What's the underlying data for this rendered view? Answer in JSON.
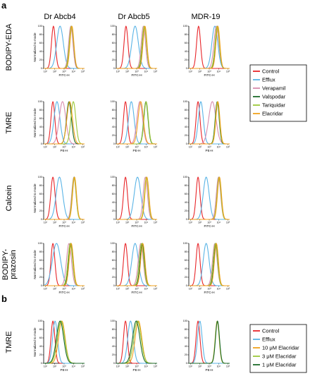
{
  "figure": {
    "panel_a": "a",
    "panel_b": "b",
    "columns": [
      "Dr Abcb4",
      "Dr Abcb5",
      "MDR-19"
    ]
  },
  "colors": {
    "Control": "#e8262a",
    "Efflux": "#5ab4e6",
    "Verapamil": "#d98cae",
    "Valspodar": "#1d6b2a",
    "Tariquidar": "#9cc83a",
    "Elacridar": "#f0a21e",
    "10 μM Elacridar": "#f0a21e",
    "3 μM Elacridar": "#9cc83a",
    "1 μM Elacridar": "#1d6b2a"
  },
  "legend_a": [
    "Control",
    "Efflux",
    "Verapamil",
    "Valspodar",
    "Tariquidar",
    "Elacridar"
  ],
  "legend_b": [
    "Control",
    "Efflux",
    "10 μM Elacridar",
    "3 μM Elacridar",
    "1 μM Elacridar"
  ],
  "chart_data": [
    {
      "type": "line",
      "row": "BODIPY-EDA",
      "col": "Dr Abcb4",
      "xlabel": "FITC-H",
      "ylabel": "Normalized to mode",
      "xscale": "log",
      "xlim": [
        10,
        100000
      ],
      "ylim": [
        0,
        100
      ],
      "yticks": [
        0,
        20,
        40,
        60,
        80,
        100
      ],
      "xticks": [
        "10¹",
        "10²",
        "10³",
        "10⁴",
        "10⁵"
      ],
      "series": [
        {
          "name": "Control",
          "peak_x": 90,
          "width": 0.12
        },
        {
          "name": "Efflux",
          "peak_x": 400,
          "width": 0.2
        },
        {
          "name": "Verapamil",
          "peak_x": 4500,
          "width": 0.13
        },
        {
          "name": "Valspodar",
          "peak_x": 5500,
          "width": 0.12
        },
        {
          "name": "Tariquidar",
          "peak_x": 5200,
          "width": 0.13
        },
        {
          "name": "Elacridar",
          "peak_x": 5800,
          "width": 0.12
        }
      ]
    },
    {
      "type": "line",
      "row": "BODIPY-EDA",
      "col": "Dr Abcb5",
      "xlabel": "FITC-H",
      "ylabel": "",
      "xscale": "log",
      "xlim": [
        10,
        100000
      ],
      "ylim": [
        0,
        100
      ],
      "yticks": [
        0,
        20,
        40,
        60,
        80,
        100
      ],
      "xticks": [
        "10¹",
        "10²",
        "10³",
        "10⁴",
        "10⁵"
      ],
      "series": [
        {
          "name": "Control",
          "peak_x": 90,
          "width": 0.12
        },
        {
          "name": "Efflux",
          "peak_x": 700,
          "width": 0.2
        },
        {
          "name": "Verapamil",
          "peak_x": 4500,
          "width": 0.13
        },
        {
          "name": "Valspodar",
          "peak_x": 6000,
          "width": 0.12
        },
        {
          "name": "Tariquidar",
          "peak_x": 5500,
          "width": 0.13
        },
        {
          "name": "Elacridar",
          "peak_x": 6500,
          "width": 0.12
        }
      ]
    },
    {
      "type": "line",
      "row": "BODIPY-EDA",
      "col": "MDR-19",
      "xlabel": "FITC-H",
      "ylabel": "",
      "xscale": "log",
      "xlim": [
        10,
        100000
      ],
      "ylim": [
        0,
        100
      ],
      "yticks": [
        0,
        20,
        40,
        60,
        80,
        100
      ],
      "xticks": [
        "10¹",
        "10²",
        "10³",
        "10⁴",
        "10⁵"
      ],
      "series": [
        {
          "name": "Control",
          "peak_x": 90,
          "width": 0.12
        },
        {
          "name": "Efflux",
          "peak_x": 3500,
          "width": 0.18
        },
        {
          "name": "Verapamil",
          "peak_x": 5000,
          "width": 0.15
        },
        {
          "name": "Valspodar",
          "peak_x": 6500,
          "width": 0.12
        },
        {
          "name": "Tariquidar",
          "peak_x": 6000,
          "width": 0.13
        },
        {
          "name": "Elacridar",
          "peak_x": 7000,
          "width": 0.12
        }
      ]
    },
    {
      "type": "line",
      "row": "TMRE",
      "col": "Dr Abcb4",
      "xlabel": "PE-H",
      "ylabel": "Normalized to mode",
      "xscale": "log",
      "xlim": [
        10,
        100000
      ],
      "ylim": [
        0,
        100
      ],
      "yticks": [
        0,
        20,
        40,
        60,
        80,
        100
      ],
      "xticks": [
        "10¹",
        "10²",
        "10³",
        "10⁴",
        "10⁵"
      ],
      "series": [
        {
          "name": "Control",
          "peak_x": 80,
          "width": 0.12
        },
        {
          "name": "Efflux",
          "peak_x": 200,
          "width": 0.18
        },
        {
          "name": "Verapamil",
          "peak_x": 700,
          "width": 0.2
        },
        {
          "name": "Valspodar",
          "peak_x": 3000,
          "width": 0.15
        },
        {
          "name": "Tariquidar",
          "peak_x": 8000,
          "width": 0.15
        },
        {
          "name": "Elacridar",
          "peak_x": 3500,
          "width": 0.17
        }
      ]
    },
    {
      "type": "line",
      "row": "TMRE",
      "col": "Dr Abcb5",
      "xlabel": "PE-H",
      "ylabel": "",
      "xscale": "log",
      "xlim": [
        10,
        100000
      ],
      "ylim": [
        0,
        100
      ],
      "yticks": [
        0,
        20,
        40,
        60,
        80,
        100
      ],
      "xticks": [
        "10¹",
        "10²",
        "10³",
        "10⁴",
        "10⁵"
      ],
      "series": [
        {
          "name": "Control",
          "peak_x": 80,
          "width": 0.12
        },
        {
          "name": "Efflux",
          "peak_x": 300,
          "width": 0.17
        },
        {
          "name": "Verapamil",
          "peak_x": 2000,
          "width": 0.17
        },
        {
          "name": "Valspodar",
          "peak_x": 8000,
          "width": 0.13
        },
        {
          "name": "Tariquidar",
          "peak_x": 8500,
          "width": 0.13
        },
        {
          "name": "Elacridar",
          "peak_x": 2500,
          "width": 0.16
        }
      ]
    },
    {
      "type": "line",
      "row": "TMRE",
      "col": "MDR-19",
      "xlabel": "PE-H",
      "ylabel": "",
      "xscale": "log",
      "xlim": [
        10,
        100000
      ],
      "ylim": [
        0,
        100
      ],
      "yticks": [
        0,
        20,
        40,
        60,
        80,
        100
      ],
      "xticks": [
        "10¹",
        "10²",
        "10³",
        "10⁴",
        "10⁵"
      ],
      "series": [
        {
          "name": "Control",
          "peak_x": 80,
          "width": 0.12
        },
        {
          "name": "Efflux",
          "peak_x": 150,
          "width": 0.15
        },
        {
          "name": "Verapamil",
          "peak_x": 2000,
          "width": 0.22
        },
        {
          "name": "Valspodar",
          "peak_x": 6000,
          "width": 0.12
        },
        {
          "name": "Tariquidar",
          "peak_x": 6500,
          "width": 0.12
        },
        {
          "name": "Elacridar",
          "peak_x": 7000,
          "width": 0.12
        }
      ]
    },
    {
      "type": "line",
      "row": "Calcein",
      "col": "Dr Abcb4",
      "xlabel": "FITC-H",
      "ylabel": "Normalized to mode",
      "xscale": "log",
      "xlim": [
        10,
        100000
      ],
      "ylim": [
        0,
        100
      ],
      "yticks": [
        0,
        20,
        40,
        60,
        80,
        100
      ],
      "xticks": [
        "10¹",
        "10²",
        "10³",
        "10⁴",
        "10⁵"
      ],
      "series": [
        {
          "name": "Control",
          "peak_x": 80,
          "width": 0.13
        },
        {
          "name": "Efflux",
          "peak_x": 350,
          "width": 0.2
        },
        {
          "name": "Verapamil",
          "peak_x": 9000,
          "width": 0.13
        },
        {
          "name": "Valspodar",
          "peak_x": 10000,
          "width": 0.12
        },
        {
          "name": "Tariquidar",
          "peak_x": 9500,
          "width": 0.12
        },
        {
          "name": "Elacridar",
          "peak_x": 10500,
          "width": 0.12
        }
      ]
    },
    {
      "type": "line",
      "row": "Calcein",
      "col": "Dr Abcb5",
      "xlabel": "FITC-H",
      "ylabel": "",
      "xscale": "log",
      "xlim": [
        10,
        100000
      ],
      "ylim": [
        0,
        100
      ],
      "yticks": [
        0,
        20,
        40,
        60,
        80,
        100
      ],
      "xticks": [
        "10¹",
        "10²",
        "10³",
        "10⁴",
        "10⁵"
      ],
      "series": [
        {
          "name": "Control",
          "peak_x": 80,
          "width": 0.12
        },
        {
          "name": "Efflux",
          "peak_x": 1200,
          "width": 0.2
        },
        {
          "name": "Verapamil",
          "peak_x": 7000,
          "width": 0.13
        },
        {
          "name": "Valspodar",
          "peak_x": 9500,
          "width": 0.12
        },
        {
          "name": "Tariquidar",
          "peak_x": 9000,
          "width": 0.12
        },
        {
          "name": "Elacridar",
          "peak_x": 10000,
          "width": 0.12
        }
      ]
    },
    {
      "type": "line",
      "row": "Calcein",
      "col": "MDR-19",
      "xlabel": "FITC-H",
      "ylabel": "",
      "xscale": "log",
      "xlim": [
        10,
        100000
      ],
      "ylim": [
        0,
        100
      ],
      "yticks": [
        0,
        20,
        40,
        60,
        80,
        100
      ],
      "xticks": [
        "10¹",
        "10²",
        "10³",
        "10⁴",
        "10⁵"
      ],
      "series": [
        {
          "name": "Control",
          "peak_x": 80,
          "width": 0.12
        },
        {
          "name": "Efflux",
          "peak_x": 500,
          "width": 0.18
        },
        {
          "name": "Verapamil",
          "peak_x": 8000,
          "width": 0.13
        },
        {
          "name": "Valspodar",
          "peak_x": 9500,
          "width": 0.12
        },
        {
          "name": "Tariquidar",
          "peak_x": 9000,
          "width": 0.12
        },
        {
          "name": "Elacridar",
          "peak_x": 10000,
          "width": 0.12
        }
      ]
    },
    {
      "type": "line",
      "row": "BODIPY-prazosin",
      "col": "Dr Abcb4",
      "xlabel": "FITC-H",
      "ylabel": "Normalized to mode",
      "xscale": "log",
      "xlim": [
        10,
        100000
      ],
      "ylim": [
        0,
        100
      ],
      "yticks": [
        0,
        20,
        40,
        60,
        80,
        100
      ],
      "xticks": [
        "10¹",
        "10²",
        "10³",
        "10⁴",
        "10⁵"
      ],
      "series": [
        {
          "name": "Control",
          "peak_x": 80,
          "width": 0.12
        },
        {
          "name": "Efflux",
          "peak_x": 180,
          "width": 0.25
        },
        {
          "name": "Verapamil",
          "peak_x": 3000,
          "width": 0.15
        },
        {
          "name": "Valspodar",
          "peak_x": 4500,
          "width": 0.13
        },
        {
          "name": "Tariquidar",
          "peak_x": 4000,
          "width": 0.14
        },
        {
          "name": "Elacridar",
          "peak_x": 5000,
          "width": 0.13
        }
      ]
    },
    {
      "type": "line",
      "row": "BODIPY-prazosin",
      "col": "Dr Abcb5",
      "xlabel": "FITC-H",
      "ylabel": "",
      "xscale": "log",
      "xlim": [
        10,
        100000
      ],
      "ylim": [
        0,
        100
      ],
      "yticks": [
        0,
        20,
        40,
        60,
        80,
        100
      ],
      "xticks": [
        "10¹",
        "10²",
        "10³",
        "10⁴",
        "10⁵"
      ],
      "series": [
        {
          "name": "Control",
          "peak_x": 80,
          "width": 0.12
        },
        {
          "name": "Efflux",
          "peak_x": 700,
          "width": 0.2
        },
        {
          "name": "Verapamil",
          "peak_x": 2500,
          "width": 0.15
        },
        {
          "name": "Valspodar",
          "peak_x": 3500,
          "width": 0.13
        },
        {
          "name": "Tariquidar",
          "peak_x": 3000,
          "width": 0.14
        },
        {
          "name": "Elacridar",
          "peak_x": 4000,
          "width": 0.13
        }
      ]
    },
    {
      "type": "line",
      "row": "BODIPY-prazosin",
      "col": "MDR-19",
      "xlabel": "FITC-H",
      "ylabel": "",
      "xscale": "log",
      "xlim": [
        10,
        100000
      ],
      "ylim": [
        0,
        100
      ],
      "yticks": [
        0,
        20,
        40,
        60,
        80,
        100
      ],
      "xticks": [
        "10¹",
        "10²",
        "10³",
        "10⁴",
        "10⁵"
      ],
      "series": [
        {
          "name": "Control",
          "peak_x": 80,
          "width": 0.12
        },
        {
          "name": "Efflux",
          "peak_x": 500,
          "width": 0.18
        },
        {
          "name": "Verapamil",
          "peak_x": 3500,
          "width": 0.14
        },
        {
          "name": "Valspodar",
          "peak_x": 4500,
          "width": 0.12
        },
        {
          "name": "Tariquidar",
          "peak_x": 4000,
          "width": 0.13
        },
        {
          "name": "Elacridar",
          "peak_x": 5000,
          "width": 0.12
        }
      ]
    },
    {
      "type": "line",
      "row": "TMRE",
      "col": "Dr Abcb4",
      "panel": "b",
      "xlabel": "PE-H",
      "ylabel": "Normalized to mode",
      "xscale": "log",
      "xlim": [
        10,
        100000
      ],
      "ylim": [
        0,
        100
      ],
      "yticks": [
        0,
        20,
        40,
        60,
        80,
        100
      ],
      "xticks": [
        "10¹",
        "10²",
        "10³",
        "10⁴",
        "10⁵"
      ],
      "series": [
        {
          "name": "Control",
          "peak_x": 80,
          "width": 0.12
        },
        {
          "name": "Efflux",
          "peak_x": 130,
          "width": 0.15
        },
        {
          "name": "10 μM Elacridar",
          "peak_x": 600,
          "width": 0.2
        },
        {
          "name": "3 μM Elacridar",
          "peak_x": 500,
          "width": 0.22
        },
        {
          "name": "1 μM Elacridar",
          "peak_x": 400,
          "width": 0.22
        }
      ]
    },
    {
      "type": "line",
      "row": "TMRE",
      "col": "Dr Abcb5",
      "panel": "b",
      "xlabel": "PE-H",
      "ylabel": "",
      "xscale": "log",
      "xlim": [
        10,
        100000
      ],
      "ylim": [
        0,
        100
      ],
      "yticks": [
        0,
        20,
        40,
        60,
        80,
        100
      ],
      "xticks": [
        "10¹",
        "10²",
        "10³",
        "10⁴",
        "10⁵"
      ],
      "series": [
        {
          "name": "Control",
          "peak_x": 80,
          "width": 0.12
        },
        {
          "name": "Efflux",
          "peak_x": 250,
          "width": 0.17
        },
        {
          "name": "10 μM Elacridar",
          "peak_x": 1500,
          "width": 0.2
        },
        {
          "name": "3 μM Elacridar",
          "peak_x": 1200,
          "width": 0.22
        },
        {
          "name": "1 μM Elacridar",
          "peak_x": 900,
          "width": 0.22
        }
      ]
    },
    {
      "type": "line",
      "row": "TMRE",
      "col": "MDR-19",
      "panel": "b",
      "xlabel": "PE-H",
      "ylabel": "",
      "xscale": "log",
      "xlim": [
        10,
        100000
      ],
      "ylim": [
        0,
        100
      ],
      "yticks": [
        0,
        20,
        40,
        60,
        80,
        100
      ],
      "xticks": [
        "10¹",
        "10²",
        "10³",
        "10⁴",
        "10⁵"
      ],
      "series": [
        {
          "name": "Control",
          "peak_x": 80,
          "width": 0.12
        },
        {
          "name": "Efflux",
          "peak_x": 120,
          "width": 0.14
        },
        {
          "name": "10 μM Elacridar",
          "peak_x": 6000,
          "width": 0.12
        },
        {
          "name": "3 μM Elacridar",
          "peak_x": 6200,
          "width": 0.12
        },
        {
          "name": "1 μM Elacridar",
          "peak_x": 6400,
          "width": 0.12
        }
      ]
    }
  ],
  "row_labels": [
    {
      "lines": [
        "BODIPY-EDA"
      ]
    },
    {
      "lines": [
        "TMRE"
      ]
    },
    {
      "lines": [
        "Calcein"
      ]
    },
    {
      "lines": [
        "BODIPY-",
        "prazosin"
      ]
    },
    {
      "lines": [
        "TMRE"
      ]
    }
  ]
}
